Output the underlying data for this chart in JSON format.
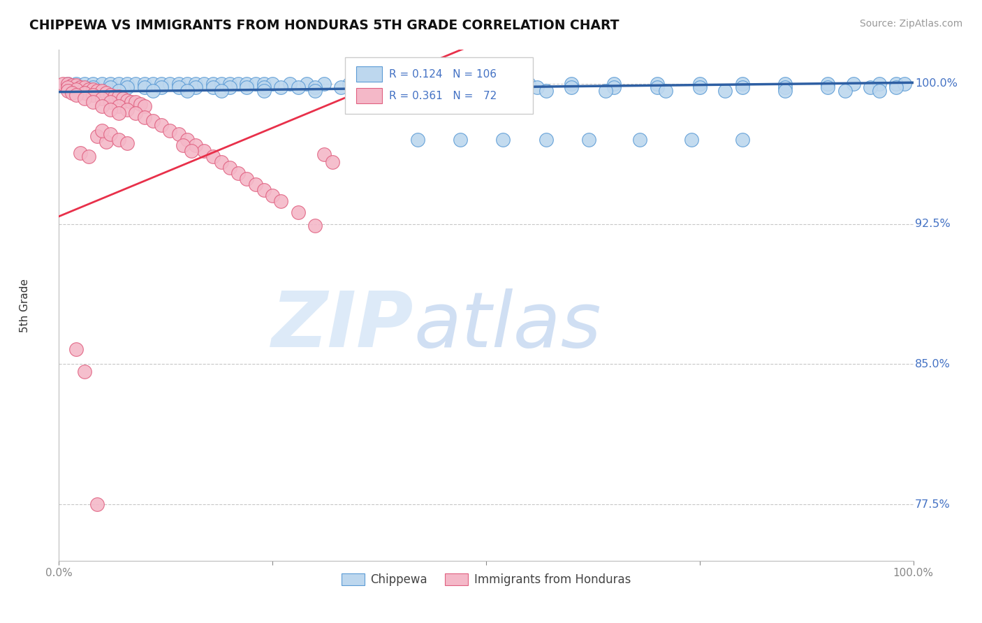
{
  "title": "CHIPPEWA VS IMMIGRANTS FROM HONDURAS 5TH GRADE CORRELATION CHART",
  "source": "Source: ZipAtlas.com",
  "ylabel": "5th Grade",
  "xlim": [
    0.0,
    1.0
  ],
  "ylim": [
    0.745,
    1.018
  ],
  "yticks": [
    0.775,
    0.85,
    0.925,
    1.0
  ],
  "ytick_labels": [
    "77.5%",
    "85.0%",
    "92.5%",
    "100.0%"
  ],
  "blue_color": "#bdd7ee",
  "blue_edge": "#5b9bd5",
  "pink_color": "#f4b8c8",
  "pink_edge": "#e06080",
  "trend_blue_color": "#2e5fa3",
  "trend_pink_color": "#e8304a",
  "grid_color": "#c8c8c8",
  "blue_trend_x": [
    0.0,
    1.0
  ],
  "blue_trend_y": [
    0.9955,
    1.0005
  ],
  "pink_trend_x": [
    0.0,
    0.37
  ],
  "pink_trend_y": [
    0.929,
    0.999
  ],
  "blue_x": [
    0.01,
    0.02,
    0.03,
    0.04,
    0.05,
    0.06,
    0.07,
    0.08,
    0.09,
    0.1,
    0.11,
    0.12,
    0.13,
    0.14,
    0.15,
    0.16,
    0.17,
    0.18,
    0.19,
    0.2,
    0.21,
    0.22,
    0.23,
    0.24,
    0.25,
    0.27,
    0.29,
    0.31,
    0.34,
    0.37,
    0.41,
    0.45,
    0.5,
    0.55,
    0.6,
    0.65,
    0.7,
    0.75,
    0.8,
    0.85,
    0.9,
    0.93,
    0.96,
    0.98,
    0.99,
    0.02,
    0.04,
    0.06,
    0.08,
    0.1,
    0.12,
    0.14,
    0.16,
    0.18,
    0.2,
    0.22,
    0.24,
    0.26,
    0.28,
    0.3,
    0.33,
    0.36,
    0.4,
    0.44,
    0.48,
    0.52,
    0.56,
    0.6,
    0.65,
    0.7,
    0.75,
    0.8,
    0.85,
    0.9,
    0.95,
    0.98,
    0.03,
    0.07,
    0.11,
    0.15,
    0.19,
    0.24,
    0.3,
    0.36,
    0.43,
    0.5,
    0.57,
    0.64,
    0.71,
    0.78,
    0.85,
    0.92,
    0.96,
    0.42,
    0.47,
    0.52,
    0.57,
    0.62,
    0.68,
    0.74,
    0.8
  ],
  "blue_y": [
    1.0,
    1.0,
    1.0,
    1.0,
    1.0,
    1.0,
    1.0,
    1.0,
    1.0,
    1.0,
    1.0,
    1.0,
    1.0,
    1.0,
    1.0,
    1.0,
    1.0,
    1.0,
    1.0,
    1.0,
    1.0,
    1.0,
    1.0,
    1.0,
    1.0,
    1.0,
    1.0,
    1.0,
    1.0,
    1.0,
    1.0,
    1.0,
    1.0,
    1.0,
    1.0,
    1.0,
    1.0,
    1.0,
    1.0,
    1.0,
    1.0,
    1.0,
    1.0,
    1.0,
    1.0,
    0.998,
    0.998,
    0.998,
    0.998,
    0.998,
    0.998,
    0.998,
    0.998,
    0.998,
    0.998,
    0.998,
    0.998,
    0.998,
    0.998,
    0.998,
    0.998,
    0.998,
    0.998,
    0.998,
    0.998,
    0.998,
    0.998,
    0.998,
    0.998,
    0.998,
    0.998,
    0.998,
    0.998,
    0.998,
    0.998,
    0.998,
    0.996,
    0.996,
    0.996,
    0.996,
    0.996,
    0.996,
    0.996,
    0.996,
    0.996,
    0.996,
    0.996,
    0.996,
    0.996,
    0.996,
    0.996,
    0.996,
    0.996,
    0.97,
    0.97,
    0.97,
    0.97,
    0.97,
    0.97,
    0.97,
    0.97
  ],
  "pink_x": [
    0.005,
    0.01,
    0.015,
    0.02,
    0.025,
    0.03,
    0.035,
    0.04,
    0.045,
    0.05,
    0.055,
    0.06,
    0.065,
    0.07,
    0.075,
    0.08,
    0.085,
    0.09,
    0.095,
    0.1,
    0.01,
    0.02,
    0.03,
    0.04,
    0.05,
    0.06,
    0.07,
    0.08,
    0.09,
    0.1,
    0.11,
    0.12,
    0.13,
    0.14,
    0.15,
    0.16,
    0.17,
    0.18,
    0.19,
    0.2,
    0.21,
    0.22,
    0.23,
    0.24,
    0.25,
    0.26,
    0.28,
    0.3,
    0.31,
    0.32,
    0.01,
    0.015,
    0.02,
    0.03,
    0.04,
    0.05,
    0.06,
    0.07,
    0.145,
    0.155,
    0.045,
    0.055,
    0.025,
    0.035,
    0.05,
    0.06,
    0.07,
    0.08,
    0.02,
    0.03,
    0.045
  ],
  "pink_y": [
    1.0,
    1.0,
    0.999,
    0.999,
    0.998,
    0.998,
    0.997,
    0.997,
    0.996,
    0.996,
    0.995,
    0.994,
    0.993,
    0.993,
    0.992,
    0.991,
    0.99,
    0.99,
    0.989,
    0.988,
    0.998,
    0.997,
    0.995,
    0.994,
    0.992,
    0.99,
    0.988,
    0.986,
    0.984,
    0.982,
    0.98,
    0.978,
    0.975,
    0.973,
    0.97,
    0.967,
    0.964,
    0.961,
    0.958,
    0.955,
    0.952,
    0.949,
    0.946,
    0.943,
    0.94,
    0.937,
    0.931,
    0.924,
    0.962,
    0.958,
    0.996,
    0.995,
    0.994,
    0.992,
    0.99,
    0.988,
    0.986,
    0.984,
    0.967,
    0.964,
    0.972,
    0.969,
    0.963,
    0.961,
    0.975,
    0.973,
    0.97,
    0.968,
    0.858,
    0.846,
    0.775
  ]
}
